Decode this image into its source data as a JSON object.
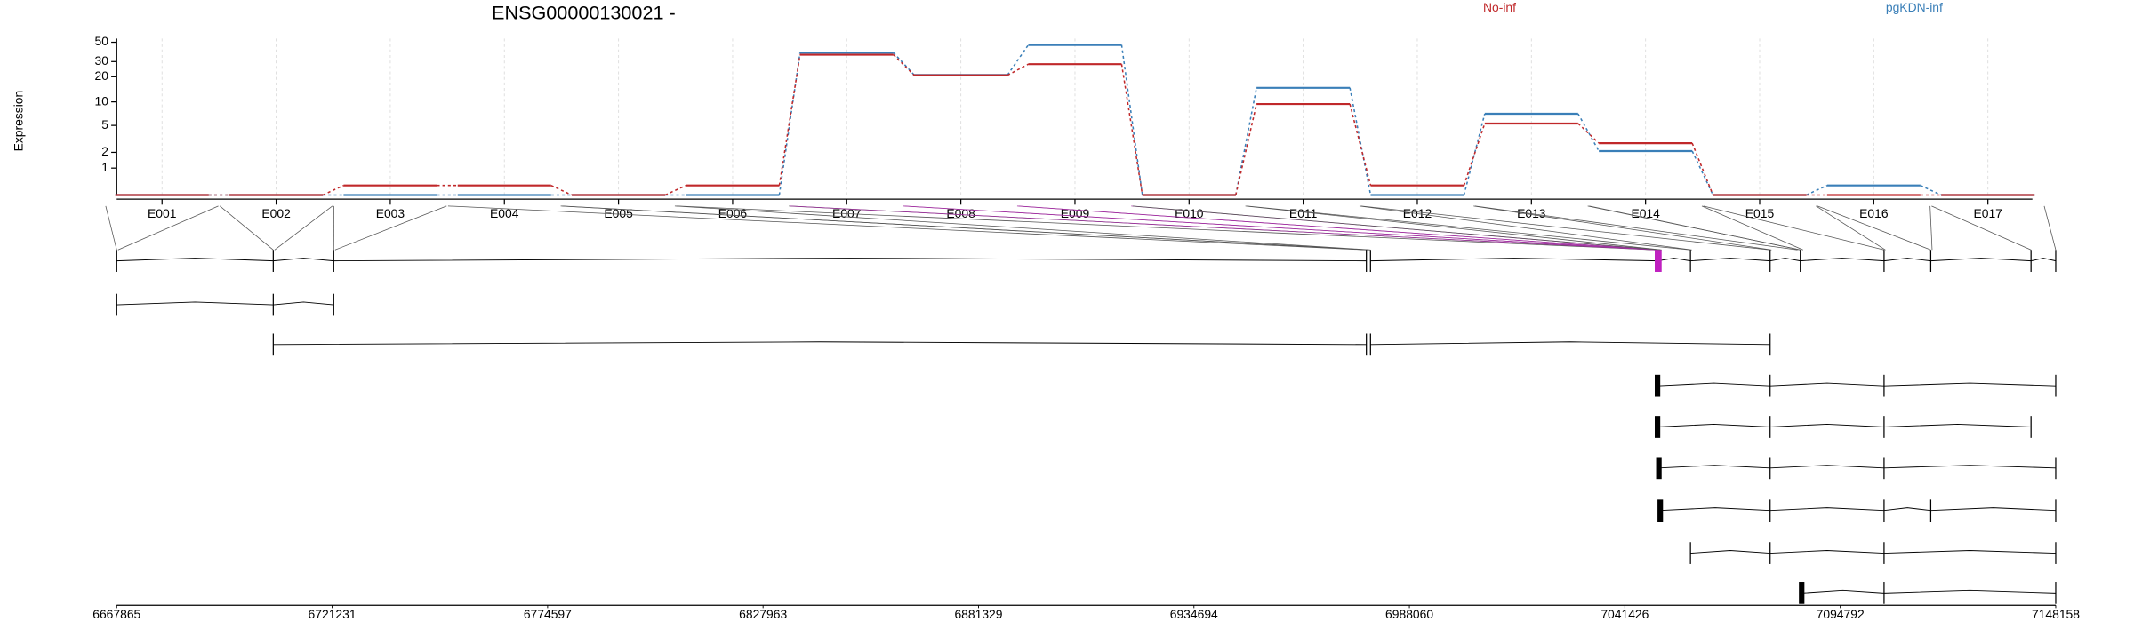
{
  "chart_data": {
    "type": "line",
    "title": "ENSG00000130021 -",
    "y_label": "Expression",
    "categories": [
      "E001",
      "E002",
      "E003",
      "E004",
      "E005",
      "E006",
      "E007",
      "E008",
      "E009",
      "E010",
      "E011",
      "E012",
      "E013",
      "E014",
      "E015",
      "E016",
      "E017"
    ],
    "series": [
      {
        "name": "No-inf",
        "color": "#c0282a",
        "values": [
          0,
          0,
          0.28,
          0.28,
          0,
          0.28,
          36,
          20.8,
          28,
          0,
          9.4,
          0.28,
          5.3,
          2.8,
          0,
          0,
          0
        ]
      },
      {
        "name": "pgKDN-inf",
        "color": "#3a7fb8",
        "values": [
          0,
          0,
          0,
          0,
          0,
          0,
          38,
          21,
          46.5,
          0,
          14.8,
          0,
          7.1,
          2.1,
          0,
          0.28,
          0
        ]
      }
    ],
    "yscale": "log1p",
    "ylim": [
      0,
      55
    ],
    "yticks": [
      1,
      2,
      5,
      10,
      20,
      30,
      50
    ],
    "grid": true,
    "legend": "top"
  },
  "genome_axis": {
    "xlim": [
      6667865,
      7148158
    ],
    "xticks": [
      6667865,
      6721231,
      6774597,
      6827963,
      6881329,
      6934694,
      6988060,
      7041426,
      7094792,
      7148158
    ]
  }
}
